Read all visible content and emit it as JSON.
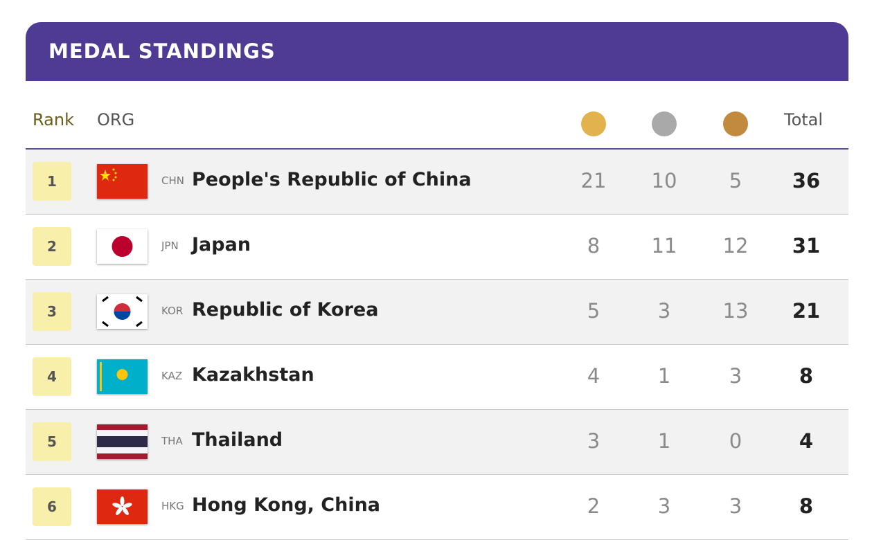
{
  "header": {
    "title": "MEDAL STANDINGS"
  },
  "table": {
    "columns": {
      "rank": "Rank",
      "org": "ORG",
      "total": "Total"
    },
    "rows": [
      {
        "rank": "1",
        "code": "CHN",
        "name": "People's Republic of China",
        "gold": 21,
        "silver": 10,
        "bronze": 5,
        "total": 36
      },
      {
        "rank": "2",
        "code": "JPN",
        "name": "Japan",
        "gold": 8,
        "silver": 11,
        "bronze": 12,
        "total": 31
      },
      {
        "rank": "3",
        "code": "KOR",
        "name": "Republic of Korea",
        "gold": 5,
        "silver": 3,
        "bronze": 13,
        "total": 21
      },
      {
        "rank": "4",
        "code": "KAZ",
        "name": "Kazakhstan",
        "gold": 4,
        "silver": 1,
        "bronze": 3,
        "total": 8
      },
      {
        "rank": "5",
        "code": "THA",
        "name": "Thailand",
        "gold": 3,
        "silver": 1,
        "bronze": 0,
        "total": 4
      },
      {
        "rank": "6",
        "code": "HKG",
        "name": "Hong Kong, China",
        "gold": 2,
        "silver": 3,
        "bronze": 3,
        "total": 8
      }
    ]
  }
}
